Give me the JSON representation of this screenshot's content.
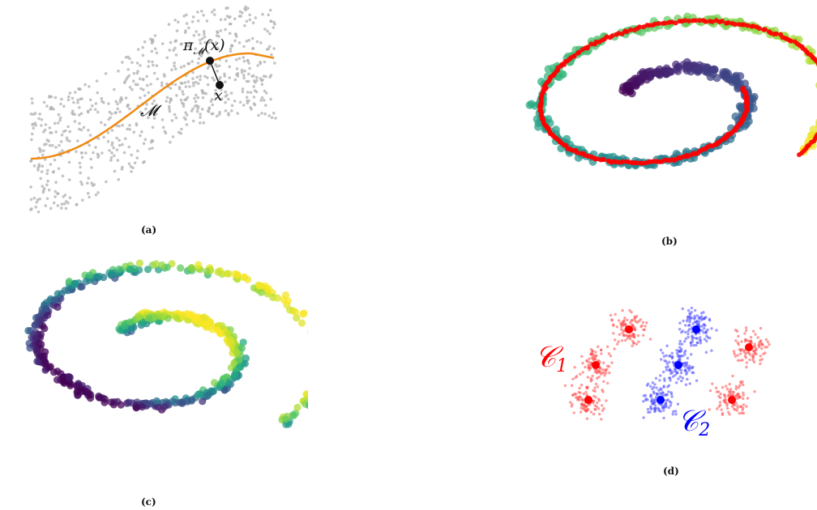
{
  "figure": {
    "panel_a": {
      "caption": "(a)",
      "manifold_label": "𝓜",
      "projection_label": "π",
      "projection_subscript": "𝓜",
      "projection_arg": "(x)",
      "point_label": "x",
      "colors": {
        "noise": "#b8b8b8",
        "curve": "#f08a12",
        "point": "#111111"
      }
    },
    "panel_b": {
      "caption": "(b)",
      "colors": {
        "ring": "#ff0000",
        "colormap": "viridis"
      }
    },
    "panel_c": {
      "caption": "(c)",
      "colors": {
        "colormap": "viridis"
      }
    },
    "panel_d": {
      "caption": "(d)",
      "cluster1_label": "𝒞",
      "cluster1_sub": "1",
      "cluster2_label": "𝒞",
      "cluster2_sub": "2",
      "colors": {
        "cluster1": "#ff0000",
        "cluster2": "#0000ff"
      }
    }
  }
}
